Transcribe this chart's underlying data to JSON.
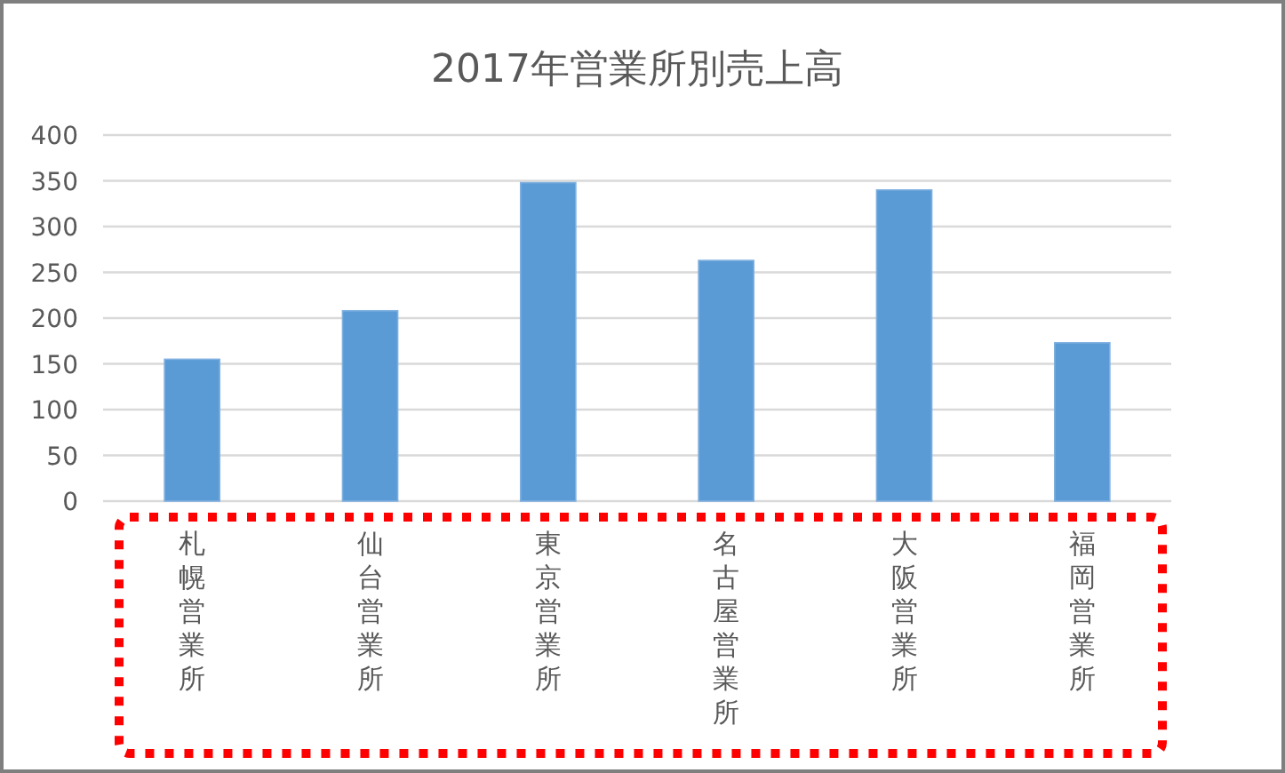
{
  "chart_data": {
    "type": "bar",
    "title": "2017年営業所別売上高",
    "categories": [
      "札幌営業所",
      "仙台営業所",
      "東京営業所",
      "名古屋営業所",
      "大阪営業所",
      "福岡営業所"
    ],
    "values": [
      155,
      208,
      348,
      263,
      340,
      173
    ],
    "color": "#5b9bd5",
    "ylim": [
      0,
      400
    ],
    "yticks": [
      0,
      50,
      100,
      150,
      200,
      250,
      300,
      350,
      400
    ],
    "grid": "y",
    "legend": false
  }
}
